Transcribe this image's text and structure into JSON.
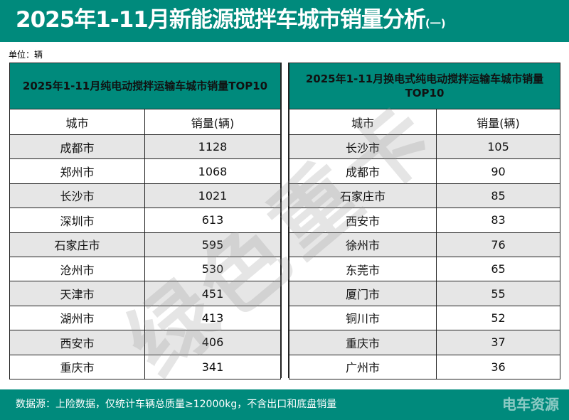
{
  "title": "2025年1-11月新能源搅拌车城市销量分析",
  "title_suffix": "(一)",
  "unit": "单位：辆",
  "watermark": "绿色重卡",
  "left": {
    "title": "2025年1-11月纯电动搅拌运输车城市销量TOP10",
    "col_city": "城市",
    "col_sales": "销量(辆)",
    "rows": [
      [
        "成都市",
        "1128"
      ],
      [
        "郑州市",
        "1068"
      ],
      [
        "长沙市",
        "1021"
      ],
      [
        "深圳市",
        "613"
      ],
      [
        "石家庄市",
        "595"
      ],
      [
        "沧州市",
        "530"
      ],
      [
        "天津市",
        "451"
      ],
      [
        "湖州市",
        "413"
      ],
      [
        "西安市",
        "406"
      ],
      [
        "重庆市",
        "341"
      ]
    ]
  },
  "right": {
    "title": "2025年1-11月换电式纯电动搅拌运输车城市销量TOP10",
    "col_city": "城市",
    "col_sales": "销量(辆)",
    "rows": [
      [
        "长沙市",
        "105"
      ],
      [
        "成都市",
        "90"
      ],
      [
        "石家庄市",
        "85"
      ],
      [
        "西安市",
        "83"
      ],
      [
        "徐州市",
        "76"
      ],
      [
        "东莞市",
        "65"
      ],
      [
        "厦门市",
        "55"
      ],
      [
        "铜川市",
        "52"
      ],
      [
        "重庆市",
        "37"
      ],
      [
        "广州市",
        "36"
      ]
    ]
  },
  "footer": {
    "source": "数据源：上险数据，仅统计车辆总质量≥12000kg，不含出口和底盘销量",
    "logo": "电车资源"
  },
  "colors": {
    "teal": "#008a7c",
    "stripe": "#e6e6e6"
  }
}
